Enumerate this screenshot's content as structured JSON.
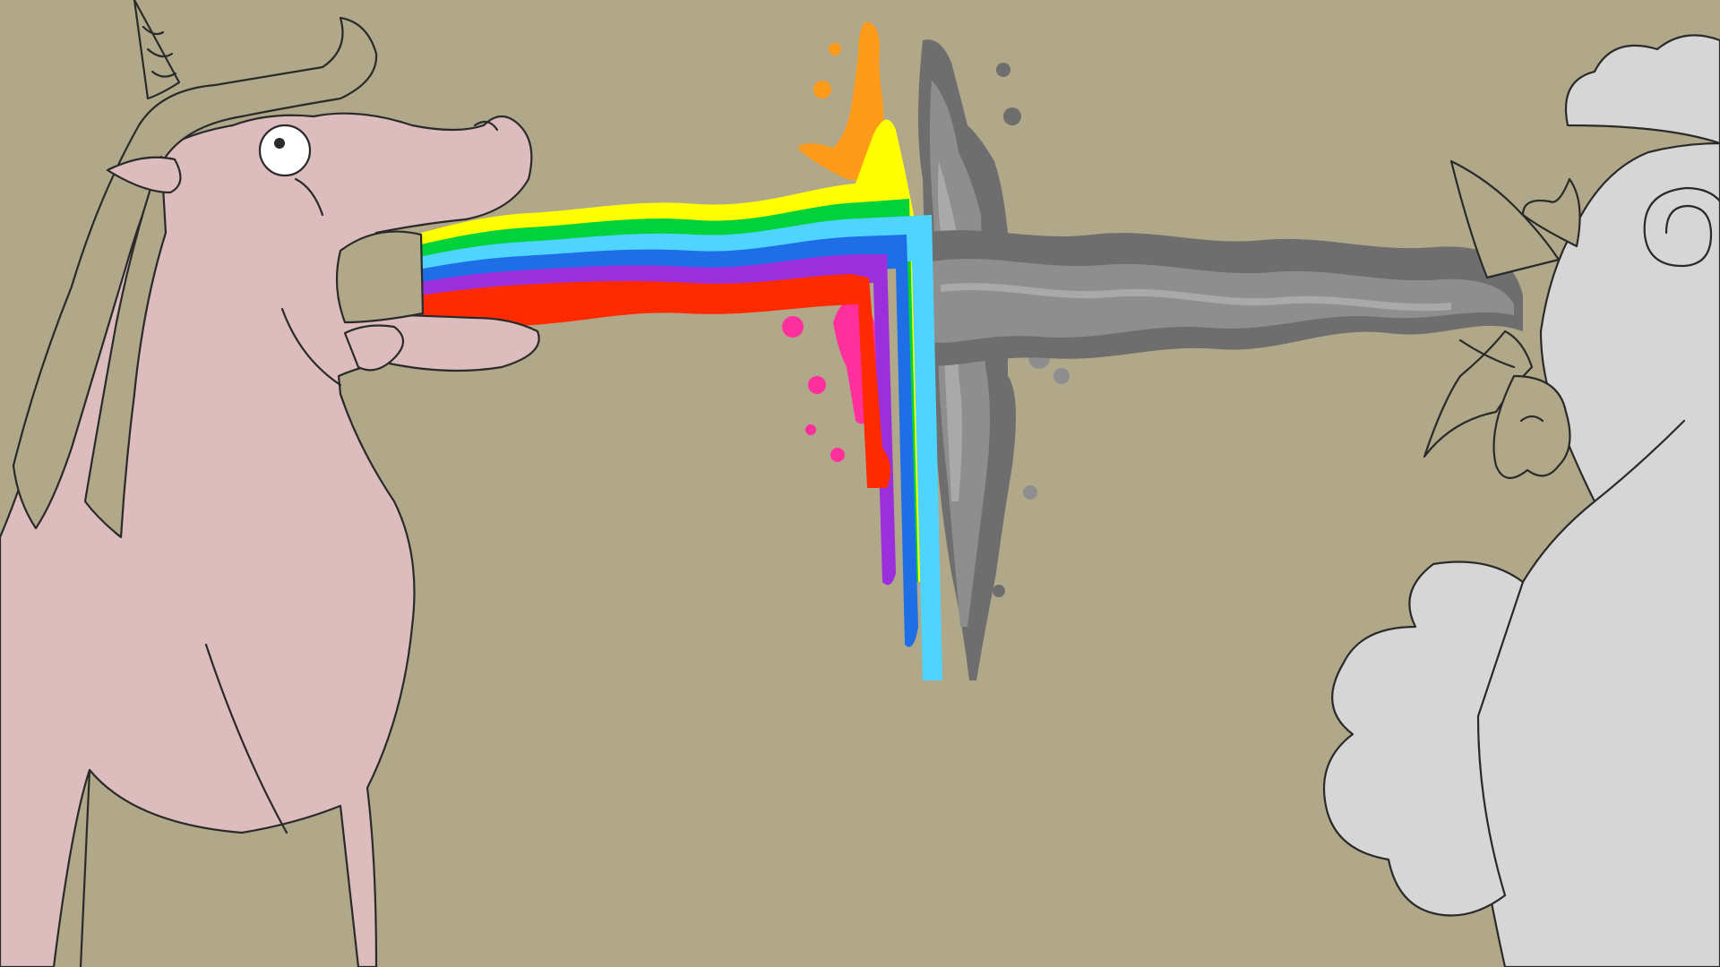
{
  "scene": {
    "background": "#b0a889",
    "line_color": "#2a2a2a",
    "unicorn": {
      "body_color": "#dcbcbc",
      "mane_color": "#b0a889",
      "icon": "unicorn-icon"
    },
    "chicken": {
      "body_color": "#d6d6d6",
      "beak_color": "#b0a889",
      "icon": "chicken-icon"
    },
    "rainbow": {
      "colors": [
        "#ffff00",
        "#00d23c",
        "#4fd3ff",
        "#1e6ee6",
        "#9b2fdc",
        "#ff2a00"
      ],
      "splash_colors": [
        "#ff9b1a",
        "#ff2f9b"
      ]
    },
    "gray_stream": {
      "colors": [
        "#6e6e6e",
        "#8e8e8e",
        "#a9a9a9"
      ]
    }
  }
}
